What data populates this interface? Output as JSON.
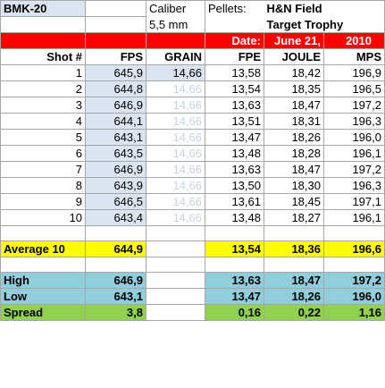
{
  "header": {
    "model": "BMK-20",
    "caliber_label": "Caliber",
    "caliber_value": "5,5 mm",
    "pellets_label": "Pellets:",
    "pellet_name_1": "H&N Field",
    "pellet_name_2": "Target Trophy"
  },
  "date": {
    "label": "Date:",
    "day": "June 21,",
    "year": "2010"
  },
  "columns": {
    "shot": "Shot #",
    "fps": "FPS",
    "grain": "GRAIN",
    "fpe": "FPE",
    "joule": "JOULE",
    "mps": "MPS"
  },
  "shots": [
    {
      "n": "1",
      "fps": "645,9",
      "grain": "14,66",
      "fpe": "13,58",
      "joule": "18,42",
      "mps": "196,9"
    },
    {
      "n": "2",
      "fps": "644,8",
      "grain": "14,66",
      "fpe": "13,54",
      "joule": "18,35",
      "mps": "196,5"
    },
    {
      "n": "3",
      "fps": "646,9",
      "grain": "14,66",
      "fpe": "13,63",
      "joule": "18,47",
      "mps": "197,2"
    },
    {
      "n": "4",
      "fps": "644,1",
      "grain": "14,66",
      "fpe": "13,51",
      "joule": "18,31",
      "mps": "196,3"
    },
    {
      "n": "5",
      "fps": "643,1",
      "grain": "14,66",
      "fpe": "13,47",
      "joule": "18,26",
      "mps": "196,0"
    },
    {
      "n": "6",
      "fps": "643,5",
      "grain": "14,66",
      "fpe": "13,48",
      "joule": "18,28",
      "mps": "196,1"
    },
    {
      "n": "7",
      "fps": "646,9",
      "grain": "14,66",
      "fpe": "13,63",
      "joule": "18,47",
      "mps": "197,2"
    },
    {
      "n": "8",
      "fps": "643,9",
      "grain": "14,66",
      "fpe": "13,50",
      "joule": "18,30",
      "mps": "196,3"
    },
    {
      "n": "9",
      "fps": "646,5",
      "grain": "14,66",
      "fpe": "13,61",
      "joule": "18,45",
      "mps": "197,1"
    },
    {
      "n": "10",
      "fps": "643,4",
      "grain": "14,66",
      "fpe": "13,48",
      "joule": "18,27",
      "mps": "196,1"
    }
  ],
  "average": {
    "label": "Average 10",
    "fps": "644,9",
    "fpe": "13,54",
    "joule": "18,36",
    "mps": "196,6"
  },
  "high": {
    "label": "High",
    "fps": "646,9",
    "fpe": "13,63",
    "joule": "18,47",
    "mps": "197,2"
  },
  "low": {
    "label": "Low",
    "fps": "643,1",
    "fpe": "13,47",
    "joule": "18,26",
    "mps": "196,0"
  },
  "spread": {
    "label": "Spread",
    "fps": "3,8",
    "fpe": "0,16",
    "joule": "0,22",
    "mps": "1,16"
  },
  "colors": {
    "date_bar": "#ff0000",
    "average": "#ffff00",
    "high_low": "#92cddc",
    "spread": "#92d050",
    "input_cells": "#dbe5f1"
  }
}
